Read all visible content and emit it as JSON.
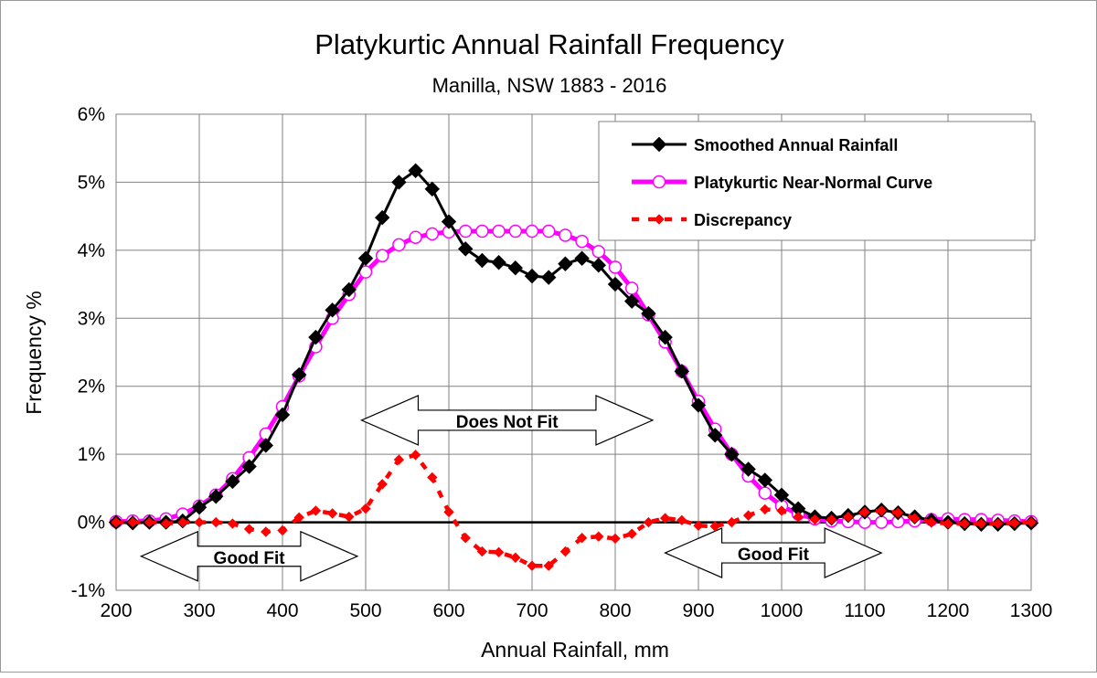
{
  "chart_data": {
    "type": "line",
    "title": "Platykurtic Annual Rainfall Frequency",
    "subtitle": "Manilla, NSW 1883 - 2016",
    "xlabel": "Annual Rainfall, mm",
    "ylabel": "Frequency %",
    "xlim": [
      200,
      1300
    ],
    "ylim": [
      -1,
      6
    ],
    "x_ticks": [
      "200",
      "300",
      "400",
      "500",
      "600",
      "700",
      "800",
      "900",
      "1000",
      "1100",
      "1200",
      "1300"
    ],
    "y_ticks": [
      "-1%",
      "0%",
      "1%",
      "2%",
      "3%",
      "4%",
      "5%",
      "6%"
    ],
    "grid": true,
    "legend_position": "top-right",
    "x": [
      200,
      220,
      240,
      260,
      280,
      300,
      320,
      340,
      360,
      380,
      400,
      420,
      440,
      460,
      480,
      500,
      520,
      540,
      560,
      580,
      600,
      620,
      640,
      660,
      680,
      700,
      720,
      740,
      760,
      780,
      800,
      820,
      840,
      860,
      880,
      900,
      920,
      940,
      960,
      980,
      1000,
      1020,
      1040,
      1060,
      1080,
      1100,
      1120,
      1140,
      1160,
      1180,
      1200,
      1220,
      1240,
      1260,
      1280,
      1300
    ],
    "series": [
      {
        "name": "Smoothed Annual Rainfall",
        "color": "#000000",
        "marker": "diamond",
        "values": [
          0.0,
          -0.01,
          0.0,
          0.0,
          0.02,
          0.22,
          0.38,
          0.6,
          0.82,
          1.13,
          1.58,
          2.17,
          2.72,
          3.12,
          3.42,
          3.88,
          4.48,
          5.0,
          5.17,
          4.9,
          4.42,
          4.02,
          3.85,
          3.82,
          3.74,
          3.62,
          3.6,
          3.8,
          3.88,
          3.78,
          3.5,
          3.25,
          3.07,
          2.72,
          2.22,
          1.72,
          1.28,
          1.0,
          0.78,
          0.62,
          0.4,
          0.2,
          0.08,
          0.06,
          0.1,
          0.15,
          0.18,
          0.14,
          0.08,
          0.03,
          0.0,
          -0.02,
          -0.03,
          -0.03,
          -0.02,
          -0.01
        ]
      },
      {
        "name": "Platykurtic Near-Normal Curve",
        "color": "#ff00ff",
        "marker": "circle",
        "values": [
          0.01,
          0.02,
          0.02,
          0.05,
          0.12,
          0.24,
          0.4,
          0.64,
          0.95,
          1.3,
          1.7,
          2.15,
          2.58,
          3.0,
          3.35,
          3.68,
          3.92,
          4.08,
          4.19,
          4.24,
          4.27,
          4.28,
          4.28,
          4.28,
          4.28,
          4.28,
          4.28,
          4.22,
          4.13,
          3.98,
          3.75,
          3.44,
          3.05,
          2.65,
          2.22,
          1.78,
          1.37,
          1.0,
          0.68,
          0.43,
          0.24,
          0.12,
          0.05,
          0.02,
          0.01,
          0.0,
          0.0,
          0.01,
          0.02,
          0.04,
          0.05,
          0.04,
          0.04,
          0.03,
          0.02,
          0.01
        ]
      },
      {
        "name": "Discrepancy",
        "color": "#ff0000",
        "marker": "diamond",
        "dashed": true,
        "values": [
          0.0,
          0.0,
          0.0,
          -0.02,
          0.0,
          0.0,
          0.0,
          -0.02,
          -0.1,
          -0.14,
          -0.12,
          0.07,
          0.17,
          0.13,
          0.08,
          0.2,
          0.56,
          0.92,
          0.99,
          0.66,
          0.15,
          -0.23,
          -0.43,
          -0.44,
          -0.52,
          -0.64,
          -0.64,
          -0.43,
          -0.23,
          -0.21,
          -0.24,
          -0.17,
          0.0,
          0.06,
          0.03,
          -0.05,
          -0.06,
          0.0,
          0.1,
          0.19,
          0.17,
          0.08,
          0.04,
          0.04,
          0.08,
          0.15,
          0.17,
          0.14,
          0.06,
          0.0,
          -0.02,
          -0.02,
          -0.02,
          -0.02,
          -0.01,
          0.0
        ]
      }
    ],
    "annotations": [
      {
        "text": "Does Not Fit",
        "x_range": [
          495,
          845
        ],
        "y": 1.5
      },
      {
        "text": "Good Fit",
        "x_range": [
          230,
          490
        ],
        "y": -0.5
      },
      {
        "text": "Good Fit",
        "x_range": [
          860,
          1120
        ],
        "y": -0.45
      }
    ]
  }
}
